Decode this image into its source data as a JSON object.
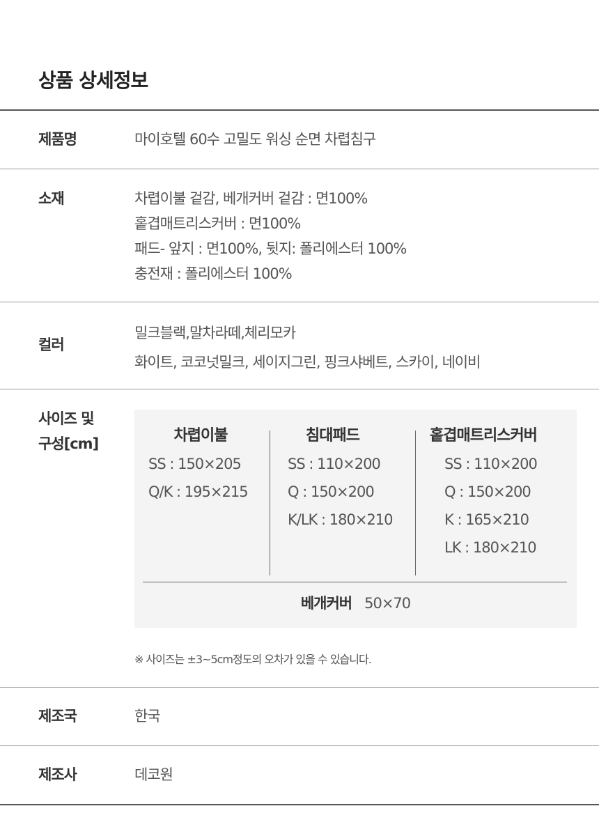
{
  "title": "상품 상세정보",
  "rows": {
    "name": {
      "label": "제품명",
      "value": "마이호텔 60수 고밀도 워싱 순면 차렵침구"
    },
    "material": {
      "label": "소재",
      "lines": [
        "차렵이불 겉감, 베개커버 겉감 : 면100%",
        "홑겹매트리스커버 : 면100%",
        "패드- 앞지 : 면100%, 뒷지: 폴리에스터 100%",
        "충전재 : 폴리에스터 100%"
      ]
    },
    "color": {
      "label": "컬러",
      "lines": [
        "밀크블랙,말차라떼,체리모카",
        "화이트, 코코넛밀크, 세이지그린, 핑크샤베트, 스카이, 네이비"
      ]
    },
    "size": {
      "label_lines": [
        "사이즈 및",
        "구성[cm]"
      ],
      "columns": [
        {
          "header": "차렵이불",
          "items": [
            "SS : 150×205",
            "Q/K : 195×215"
          ]
        },
        {
          "header": "침대패드",
          "items": [
            "SS : 110×200",
            "Q : 150×200",
            "K/LK : 180×210"
          ]
        },
        {
          "header": "홑겹매트리스커버",
          "items": [
            "SS : 110×200",
            "Q : 150×200",
            "K : 165×210",
            "LK : 180×210"
          ]
        }
      ],
      "pillow": {
        "label": "베개커버",
        "value": "50×70"
      },
      "note": "※ 사이즈는 ±3~5cm정도의 오차가 있을 수 있습니다."
    },
    "country": {
      "label": "제조국",
      "value": "한국"
    },
    "maker": {
      "label": "제조사",
      "value": "데코원"
    }
  }
}
